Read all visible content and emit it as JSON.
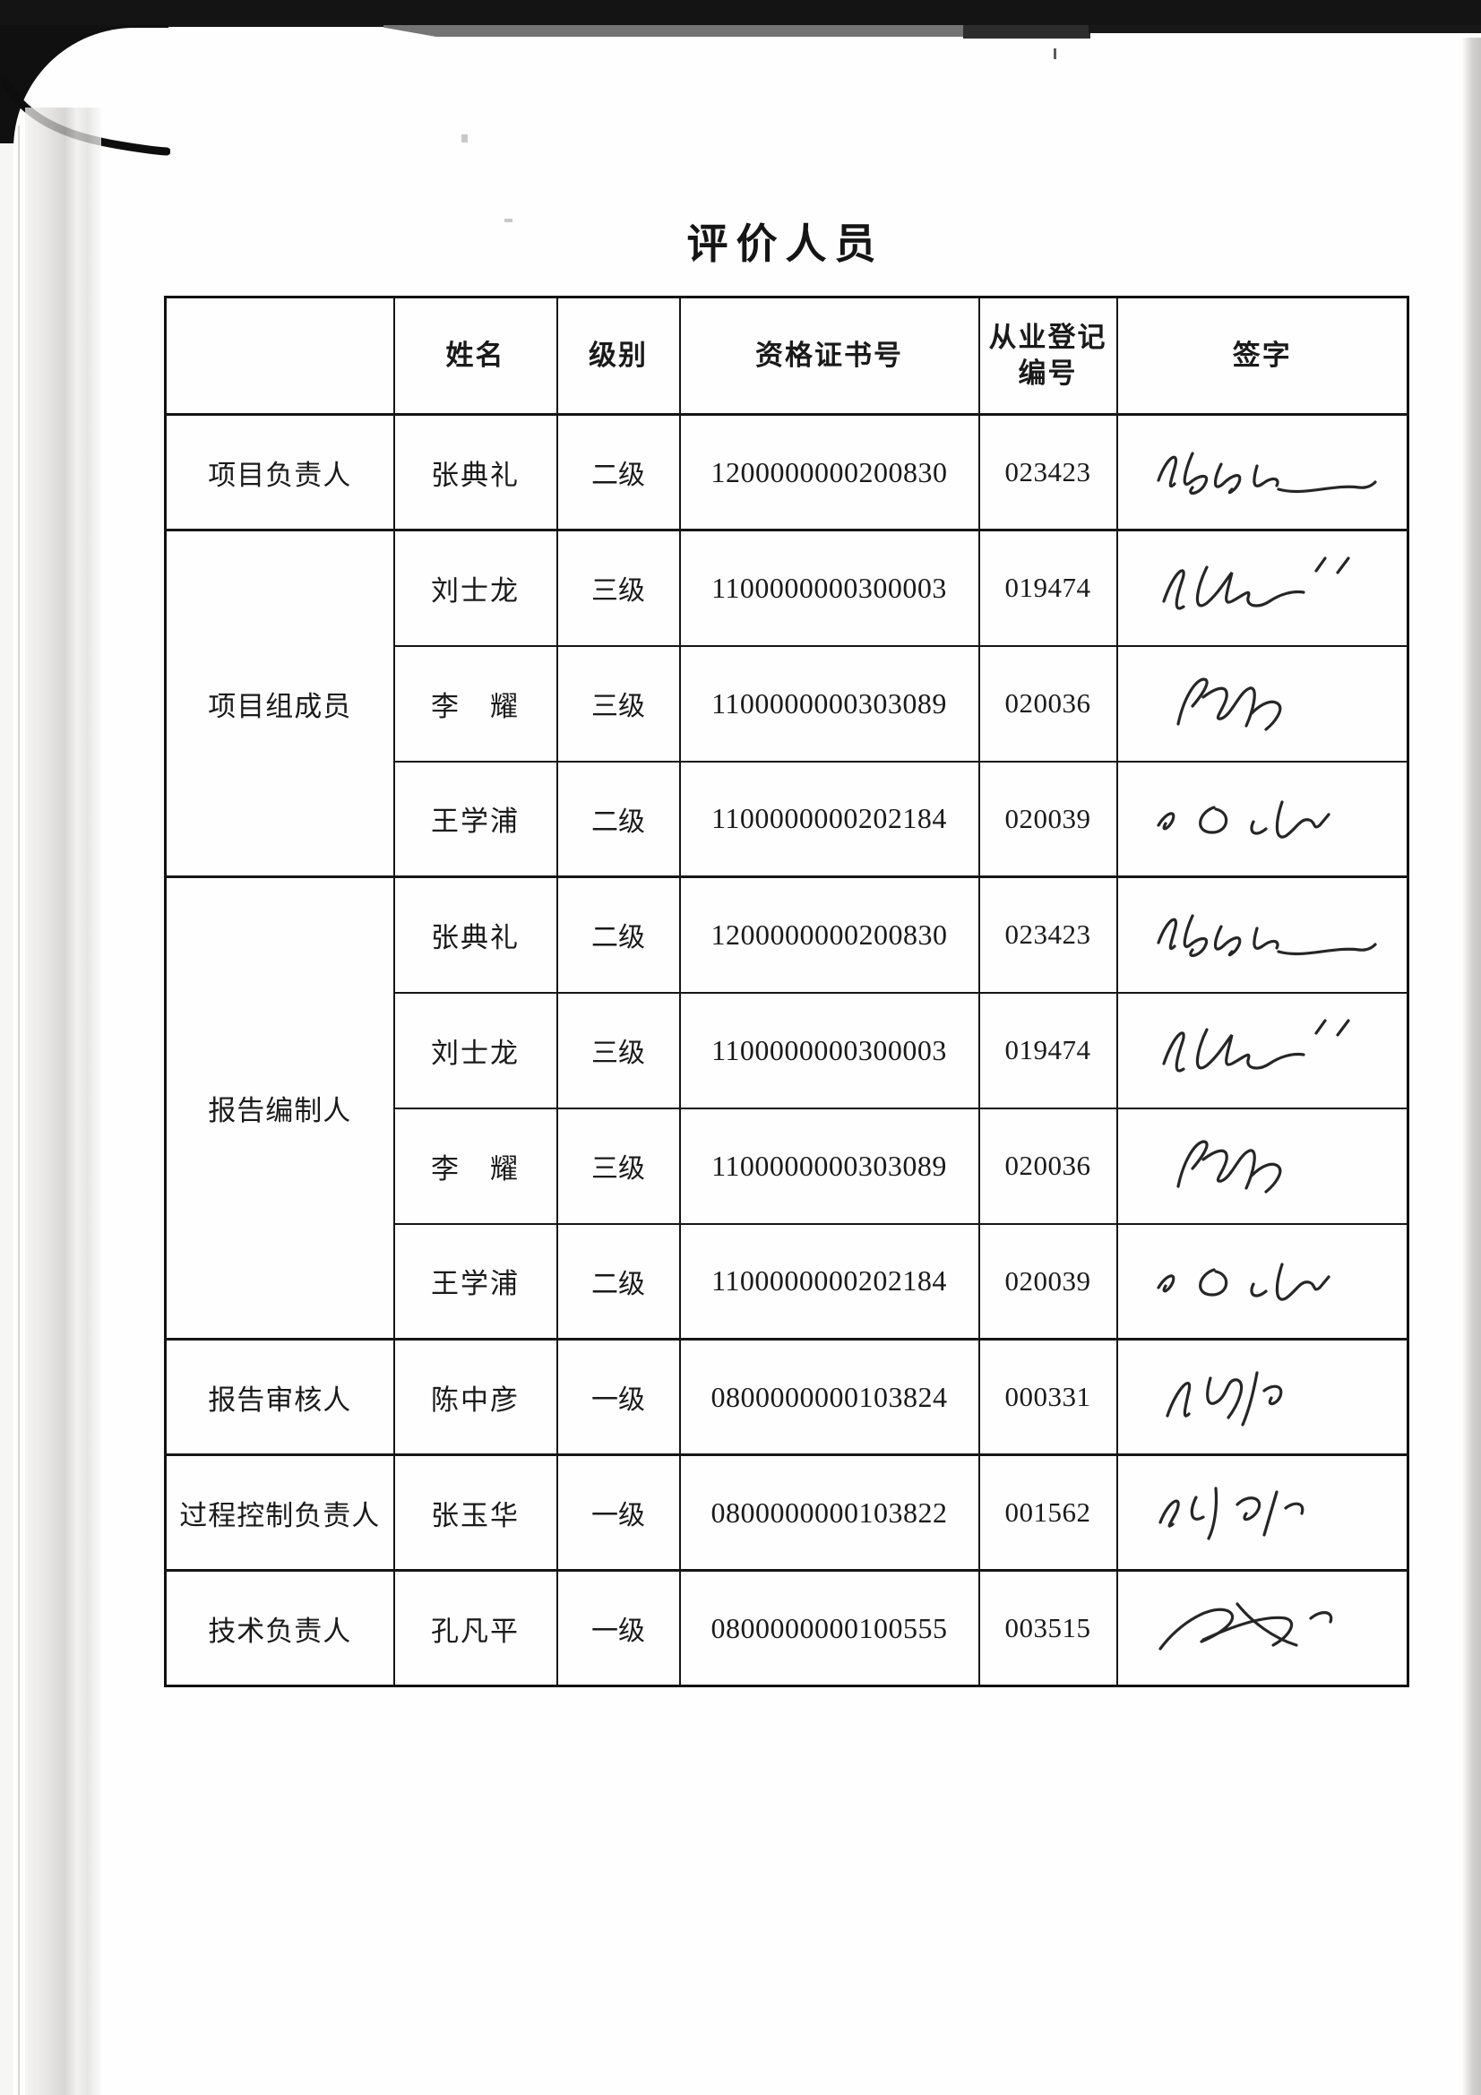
{
  "page": {
    "title": "评价人员"
  },
  "colors": {
    "ink": "#1a1a1a",
    "table_border": "#161616",
    "paper": "#fefefe",
    "scan_band": "#141414"
  },
  "table": {
    "headers": {
      "role": "",
      "name": "姓名",
      "level": "级别",
      "cert": "资格证书号",
      "reg": "从业登记编号",
      "sign": "签字"
    },
    "sections": [
      {
        "label": "项目负责人",
        "rows": [
          {
            "name": "张典礼",
            "level": "二级",
            "cert": "1200000000200830",
            "reg": "023423",
            "signature": "张典礼"
          }
        ]
      },
      {
        "label": "项目组成员",
        "rows": [
          {
            "name": "刘士龙",
            "level": "三级",
            "cert": "1100000000300003",
            "reg": "019474",
            "signature": "刘士龙"
          },
          {
            "name": "李　耀",
            "level": "三级",
            "cert": "1100000000303089",
            "reg": "020036",
            "signature": "李耀"
          },
          {
            "name": "王学浦",
            "level": "二级",
            "cert": "1100000000202184",
            "reg": "020039",
            "signature": "王学浦"
          }
        ]
      },
      {
        "label": "报告编制人",
        "rows": [
          {
            "name": "张典礼",
            "level": "二级",
            "cert": "1200000000200830",
            "reg": "023423",
            "signature": "张典礼"
          },
          {
            "name": "刘士龙",
            "level": "三级",
            "cert": "1100000000300003",
            "reg": "019474",
            "signature": "刘士龙"
          },
          {
            "name": "李　耀",
            "level": "三级",
            "cert": "1100000000303089",
            "reg": "020036",
            "signature": "李耀"
          },
          {
            "name": "王学浦",
            "level": "二级",
            "cert": "1100000000202184",
            "reg": "020039",
            "signature": "王学浦"
          }
        ]
      },
      {
        "label": "报告审核人",
        "rows": [
          {
            "name": "陈中彦",
            "level": "一级",
            "cert": "0800000000103824",
            "reg": "000331",
            "signature": "陈中彦"
          }
        ]
      },
      {
        "label": "过程控制负责人",
        "rows": [
          {
            "name": "张玉华",
            "level": "一级",
            "cert": "0800000000103822",
            "reg": "001562",
            "signature": "张玉华"
          }
        ]
      },
      {
        "label": "技术负责人",
        "rows": [
          {
            "name": "孔凡平",
            "level": "一级",
            "cert": "0800000000100555",
            "reg": "003515",
            "signature": "孔凡平"
          }
        ]
      }
    ]
  }
}
